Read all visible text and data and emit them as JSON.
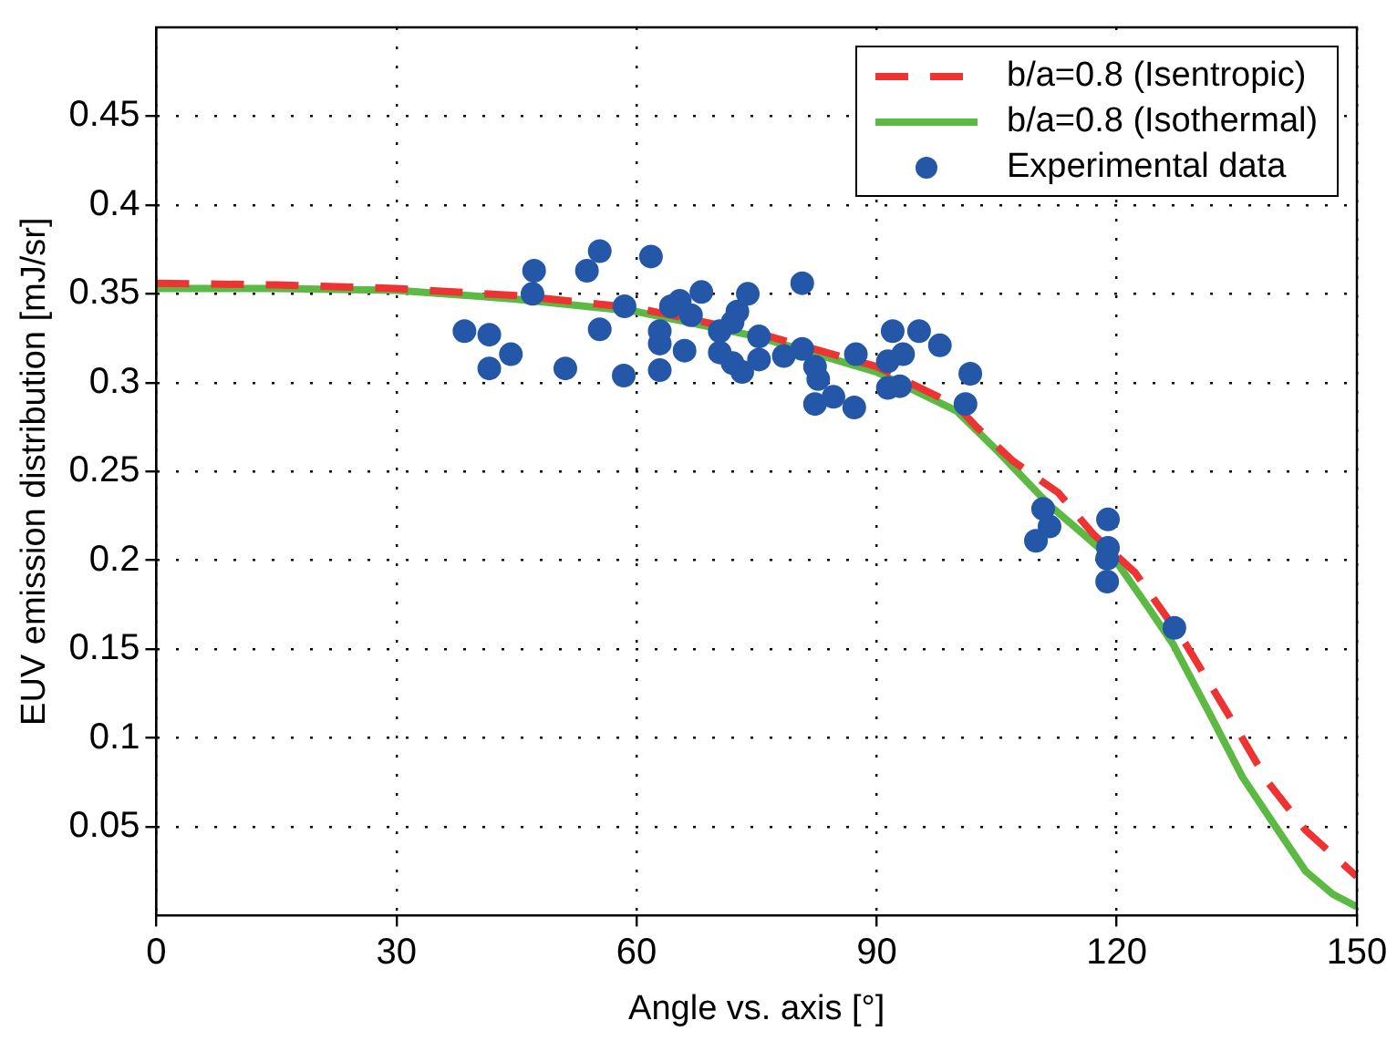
{
  "chart_data": {
    "type": "line",
    "xlabel": "Angle vs. axis [°]",
    "ylabel": "EUV emission distribution [mJ/sr]",
    "xlim": [
      0,
      150
    ],
    "xticks": [
      0,
      30,
      60,
      90,
      120,
      150
    ],
    "ylim": [
      0,
      0.5
    ],
    "yticks": [
      0.05,
      0.1,
      0.15,
      0.2,
      0.25,
      0.3,
      0.35,
      0.4,
      0.45
    ],
    "grid": true,
    "legend": "top right",
    "series": [
      {
        "name": "b/a=0.8 (Isentropic)",
        "type": "line",
        "color": "#ee3333",
        "line_style": "dashed",
        "marker": "none",
        "x": [
          0,
          15,
          30,
          45,
          60,
          75,
          90,
          100,
          102.5,
          107,
          112.7,
          117,
          122.3,
          128.6,
          134.1,
          138.9,
          143.6,
          150
        ],
        "values": [
          0.356,
          0.355,
          0.353,
          0.349,
          0.342,
          0.328,
          0.309,
          0.287,
          0.275,
          0.256,
          0.238,
          0.215,
          0.193,
          0.153,
          0.112,
          0.075,
          0.048,
          0.022
        ]
      },
      {
        "name": "b/a=0.8 (Isothermal)",
        "type": "line",
        "color": "#5cb944",
        "line_style": "solid",
        "marker": "none",
        "x": [
          0,
          15,
          30,
          45,
          60,
          75,
          90,
          100,
          105,
          111.6,
          116,
          120.3,
          124,
          127,
          131.8,
          135.7,
          139.7,
          143.6,
          147,
          150
        ],
        "values": [
          0.353,
          0.353,
          0.352,
          0.347,
          0.34,
          0.326,
          0.306,
          0.284,
          0.262,
          0.231,
          0.214,
          0.197,
          0.173,
          0.153,
          0.112,
          0.078,
          0.051,
          0.025,
          0.012,
          0.005
        ]
      },
      {
        "name": "Experimental data",
        "type": "scatter",
        "color": "#2457a8",
        "marker": "circle",
        "x": [
          38.5,
          41.6,
          41.6,
          44.3,
          47.2,
          47,
          51.1,
          53.8,
          55.4,
          55.4,
          58.5,
          58.4,
          61.8,
          62.9,
          62.9,
          62.9,
          64.3,
          65.4,
          66,
          66.8,
          68.1,
          70.4,
          70.4,
          72,
          72.6,
          72,
          73.2,
          73.9,
          75.3,
          75.3,
          78.4,
          80.7,
          80.7,
          82.3,
          82.7,
          82.3,
          84.6,
          87.4,
          87.2,
          91.4,
          92,
          91.4,
          92.9,
          93.3,
          95.3,
          97.9,
          101.7,
          101.1,
          110.8,
          111.6,
          109.9,
          118.9,
          118.9,
          118.8,
          118.8,
          127.2
        ],
        "values": [
          0.329,
          0.327,
          0.308,
          0.316,
          0.363,
          0.35,
          0.308,
          0.363,
          0.374,
          0.33,
          0.343,
          0.304,
          0.371,
          0.329,
          0.322,
          0.307,
          0.343,
          0.346,
          0.318,
          0.338,
          0.351,
          0.329,
          0.317,
          0.334,
          0.34,
          0.311,
          0.306,
          0.35,
          0.326,
          0.313,
          0.315,
          0.356,
          0.319,
          0.309,
          0.302,
          0.288,
          0.292,
          0.316,
          0.286,
          0.312,
          0.329,
          0.297,
          0.298,
          0.316,
          0.329,
          0.321,
          0.305,
          0.288,
          0.229,
          0.219,
          0.211,
          0.223,
          0.207,
          0.201,
          0.188,
          0.162
        ]
      }
    ]
  }
}
